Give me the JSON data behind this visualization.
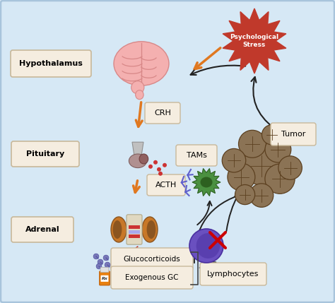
{
  "bg_color": "#d6e8f5",
  "labels": {
    "hypothalamus": "Hypothalamus",
    "pituitary": "Pituitary",
    "adrenal": "Adrenal",
    "crh": "CRH",
    "acth": "ACTH",
    "tumor": "Tumor",
    "tams": "TAMs",
    "lymphocytes": "Lymphocytes",
    "glucocorticoids": "Glucocorticoids",
    "exogenous_gc": "Exogenous GC",
    "psych_stress": "Psychological\nStress"
  },
  "stress_color": "#c0392b",
  "orange_arrow": "#e07820",
  "black_arrow": "#222222",
  "red_arrow": "#c0392b",
  "box_fc": "#f5ede0",
  "box_ec": "#c8b89a",
  "brain_color": "#f4b0b0",
  "brain_dark": "#d88888",
  "tumor_base": "#8b7355",
  "tumor_dark": "#5c4020",
  "kidney_color": "#8b5520",
  "kidney_light": "#c87828",
  "lymph_color": "#6a50c0",
  "lymph_dark": "#4a30a0",
  "tams_color": "#4a9040",
  "tams_dark": "#2d6020"
}
